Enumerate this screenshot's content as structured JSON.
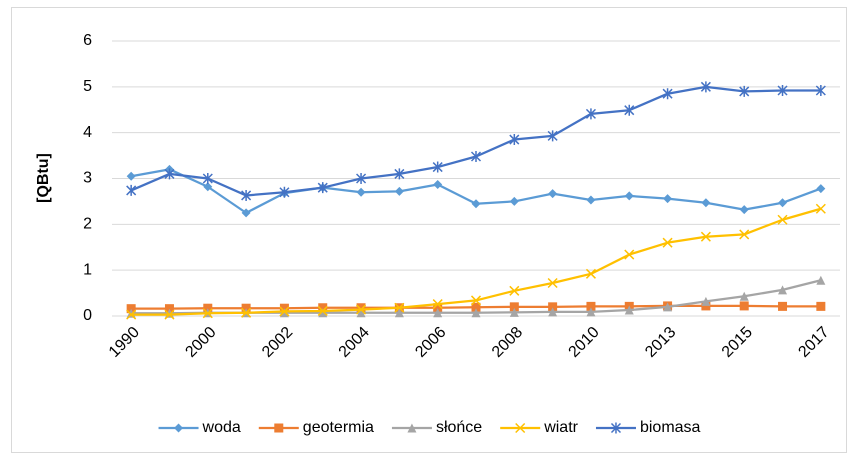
{
  "chart_data": {
    "type": "line",
    "y_label": "[QBtu]",
    "categories": [
      "1990",
      null,
      "2000",
      null,
      "2002",
      null,
      "2004",
      null,
      "2006",
      null,
      "2008",
      null,
      "2010",
      null,
      "2013",
      null,
      "2015",
      null,
      "2017"
    ],
    "series": [
      {
        "name": "woda",
        "color": "#5b9bd5",
        "values": [
          3.05,
          3.2,
          2.82,
          2.25,
          2.68,
          2.8,
          2.7,
          2.72,
          2.87,
          2.45,
          2.5,
          2.67,
          2.53,
          2.62,
          2.56,
          2.47,
          2.32,
          2.47,
          2.78
        ]
      },
      {
        "name": "geotermia",
        "color": "#ed7d31",
        "values": [
          0.16,
          0.16,
          0.17,
          0.17,
          0.17,
          0.18,
          0.18,
          0.18,
          0.18,
          0.19,
          0.2,
          0.2,
          0.21,
          0.21,
          0.22,
          0.22,
          0.22,
          0.21,
          0.21
        ]
      },
      {
        "name": "słońce",
        "color": "#a5a5a5",
        "values": [
          0.06,
          0.06,
          0.07,
          0.07,
          0.07,
          0.07,
          0.07,
          0.07,
          0.07,
          0.07,
          0.08,
          0.09,
          0.09,
          0.13,
          0.2,
          0.32,
          0.43,
          0.57,
          0.78
        ]
      },
      {
        "name": "wiatr",
        "color": "#ffc000",
        "values": [
          0.03,
          0.03,
          0.06,
          0.07,
          0.1,
          0.11,
          0.14,
          0.18,
          0.26,
          0.34,
          0.55,
          0.72,
          0.92,
          1.34,
          1.6,
          1.73,
          1.78,
          2.1,
          2.34
        ]
      },
      {
        "name": "biomasa",
        "color": "#4472c4",
        "values": [
          2.74,
          3.1,
          3.0,
          2.63,
          2.7,
          2.8,
          3.0,
          3.1,
          3.25,
          3.48,
          3.85,
          3.93,
          4.41,
          4.49,
          4.85,
          5.0,
          4.9,
          4.92,
          4.92
        ]
      }
    ],
    "ylim": [
      0,
      6
    ],
    "yticks": [
      0,
      1,
      2,
      3,
      4,
      5,
      6
    ],
    "grid": true,
    "legend": "bottom"
  }
}
